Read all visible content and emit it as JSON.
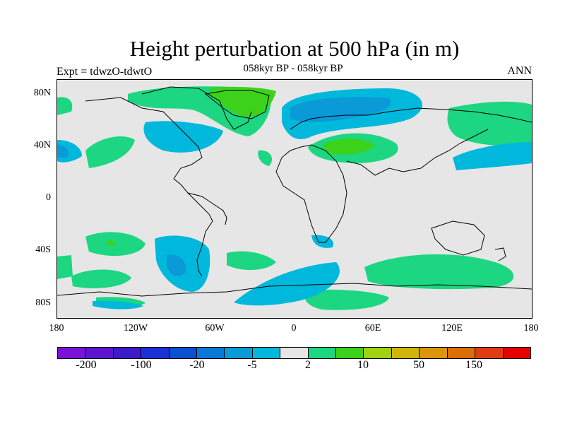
{
  "title": "Height perturbation at 500 hPa (in m)",
  "subtitle": "058kyr BP - 058kyr BP",
  "experiment": "Expt = tdwzO-tdwtO",
  "season": "ANN",
  "lat_ticks": [
    "80N",
    "40N",
    "0",
    "40S",
    "80S"
  ],
  "lon_ticks": [
    "180",
    "120W",
    "60W",
    "0",
    "60E",
    "120E",
    "180"
  ],
  "colorbar": {
    "colors": [
      "#7a12d8",
      "#5c14d0",
      "#3c1cc8",
      "#1c30d8",
      "#0a50d0",
      "#0a78d8",
      "#0a9ad8",
      "#00b8dc",
      "#e6e6e6",
      "#1cd682",
      "#3cd21c",
      "#a0d210",
      "#d2b40a",
      "#dc960a",
      "#dc6e0a",
      "#e03c14",
      "#e60000"
    ],
    "labels": [
      "-200",
      "-100",
      "-20",
      "-5",
      "2",
      "10",
      "50",
      "150"
    ]
  }
}
